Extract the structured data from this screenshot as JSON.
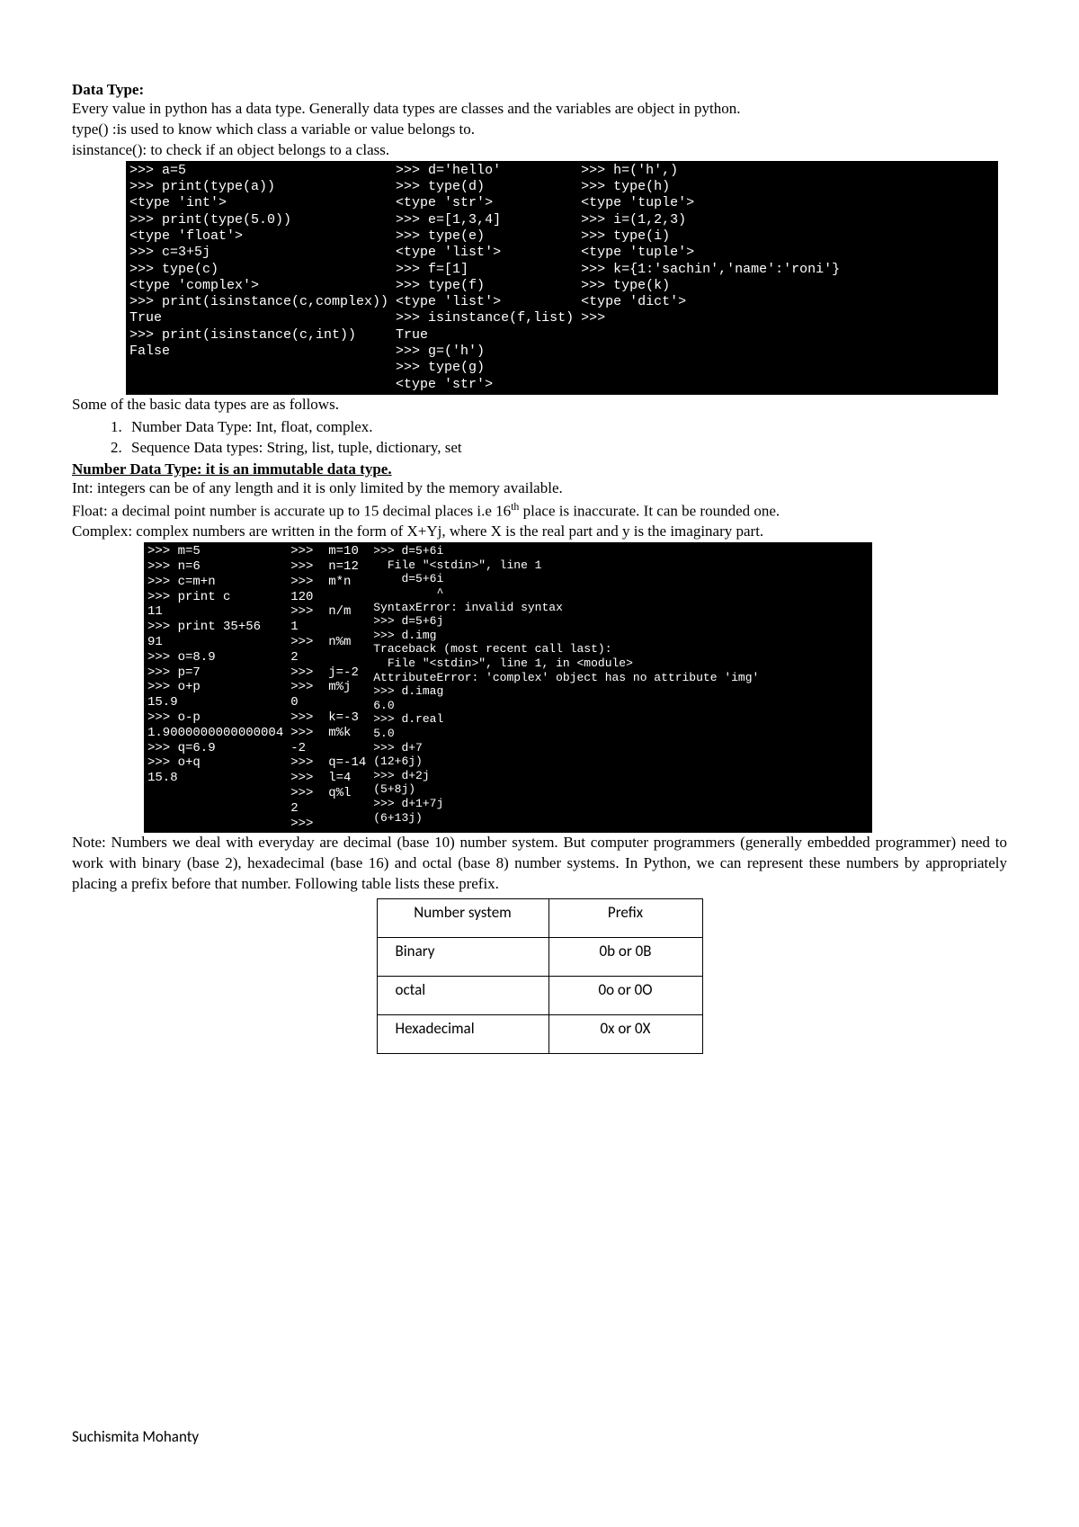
{
  "heading": "Data Type:",
  "intro1": "Every value in python has a data type. Generally data types are classes and the variables are object in python.",
  "intro2": "type() :is used to know which class a variable or value belongs to.",
  "intro3": "isinstance(): to check if an object belongs to a class.",
  "term1": {
    "col1": ">>> a=5\n>>> print(type(a))\n<type 'int'>\n>>> print(type(5.0))\n<type 'float'>\n>>> c=3+5j\n>>> type(c)\n<type 'complex'>\n>>> print(isinstance(c,complex))\nTrue\n>>> print(isinstance(c,int))\nFalse",
    "col2": ">>> d='hello'\n>>> type(d)\n<type 'str'>\n>>> e=[1,3,4]\n>>> type(e)\n<type 'list'>\n>>> f=[1]\n>>> type(f)\n<type 'list'>\n>>> isinstance(f,list)\nTrue\n>>> g=('h')\n>>> type(g)\n<type 'str'>",
    "col3": ">>> h=('h',)\n>>> type(h)\n<type 'tuple'>\n>>> i=(1,2,3)\n>>> type(i)\n<type 'tuple'>\n>>> k={1:'sachin','name':'roni'}\n>>> type(k)\n<type 'dict'>\n>>>"
  },
  "after_term1": "Some of the basic data types are as follows.",
  "list_items": [
    "Number Data Type:  Int, float, complex.",
    "Sequence Data types: String, list, tuple, dictionary, set"
  ],
  "num_heading": "Number Data Type: it is an immutable data type.",
  "int_line": "Int: integers can be of any length and it is only limited by the memory available.",
  "float_line_a": "Float: a decimal point number is accurate up to 15 decimal places i.e 16",
  "float_sup": "th",
  "float_line_b": " place is inaccurate. It can be rounded one.",
  "complex_line": "Complex: complex numbers are written in the form of X+Yj, where X is the real part and y is the imaginary part.",
  "term2": {
    "col1": ">>> m=5\n>>> n=6\n>>> c=m+n\n>>> print c\n11\n>>> print 35+56\n91\n>>> o=8.9\n>>> p=7\n>>> o+p\n15.9\n>>> o-p\n1.9000000000000004\n>>> q=6.9\n>>> o+q\n15.8",
    "col2": ">>>  m=10\n>>>  n=12\n>>>  m*n\n120\n>>>  n/m\n1\n>>>  n%m\n2\n>>>  j=-2\n>>>  m%j\n0\n>>>  k=-3\n>>>  m%k\n-2\n>>>  q=-14\n>>>  l=4\n>>>  q%l\n2\n>>>",
    "col3": ">>> d=5+6i\n  File \"<stdin>\", line 1\n    d=5+6i\n         ^\nSyntaxError: invalid syntax\n>>> d=5+6j\n>>> d.img\nTraceback (most recent call last):\n  File \"<stdin>\", line 1, in <module>\nAttributeError: 'complex' object has no attribute 'img'\n>>> d.imag\n6.0\n>>> d.real\n5.0\n>>> d+7\n(12+6j)\n>>> d+2j\n(5+8j)\n>>> d+1+7j\n(6+13j)"
  },
  "note": "Note: Numbers we deal with everyday are decimal (base 10) number system. But computer programmers (generally embedded programmer) need to work with binary (base 2), hexadecimal (base 16) and octal (base 8) number systems. In Python, we can represent these numbers by appropriately placing a prefix before that number. Following table lists these prefix.",
  "table": {
    "header": [
      "Number system",
      "Prefix"
    ],
    "rows": [
      [
        "Binary",
        "0b or 0B"
      ],
      [
        "octal",
        "0o or 0O"
      ],
      [
        "Hexadecimal",
        "0x or 0X"
      ]
    ]
  },
  "footer": "Suchismita Mohanty"
}
